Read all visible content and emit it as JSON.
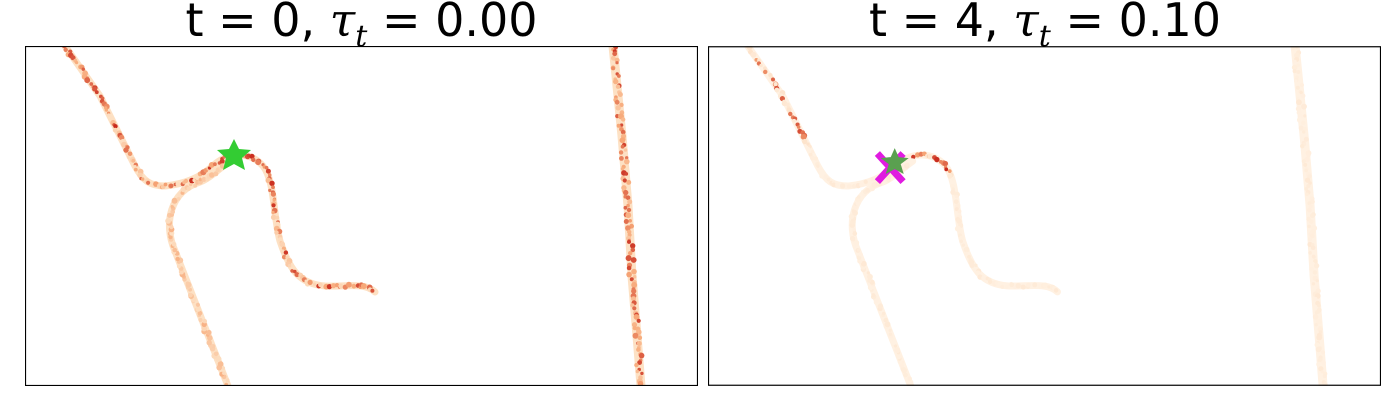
{
  "panels": [
    {
      "t_label": "t = 0,",
      "tau_symbol": "τ",
      "tau_subscript": "t",
      "tau_value": "= 0.00",
      "markers": [
        "green-star"
      ]
    },
    {
      "t_label": "t = 4,",
      "tau_symbol": "τ",
      "tau_subscript": "t",
      "tau_value": "= 0.10",
      "markers": [
        "magenta-x",
        "green-star"
      ]
    }
  ],
  "colors": {
    "heat_low": "#fde1c4",
    "heat_mid": "#f7a878",
    "heat_high": "#c8281b",
    "faded_low": "#fff1e2",
    "faded_mid": "#fde3cb",
    "star": "#33cc33",
    "star_faded": "#5aa050",
    "x_marker": "#e01be0"
  }
}
